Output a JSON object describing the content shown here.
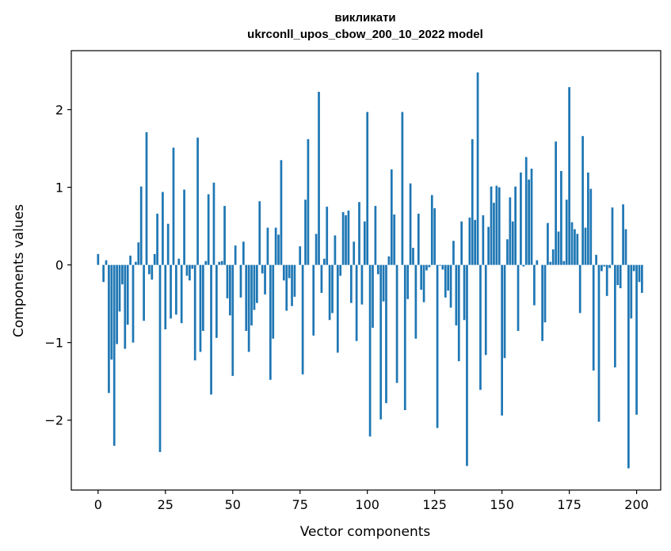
{
  "chart_data": {
    "type": "bar",
    "title_line1": "викликати",
    "title_line2": "ukrconll_upos_cbow_200_10_2022 model",
    "xlabel": "Vector components",
    "ylabel": "Components values",
    "xlim": [
      -9.95,
      208.95
    ],
    "ylim": [
      -2.9,
      2.76
    ],
    "xticks": [
      0,
      25,
      50,
      75,
      100,
      125,
      150,
      175,
      200
    ],
    "yticks": [
      -2,
      -1,
      0,
      1,
      2
    ],
    "ytick_labels": [
      "−2",
      "−1",
      "0",
      "1",
      "2"
    ],
    "bar_color": "#1f77b4",
    "grid": false,
    "values": [
      0.14,
      0.0,
      -0.22,
      0.06,
      -1.65,
      -1.22,
      -2.33,
      -1.02,
      -0.6,
      -0.25,
      -1.08,
      -0.77,
      0.12,
      -1.0,
      0.04,
      0.29,
      1.01,
      -0.72,
      1.71,
      -0.12,
      -0.19,
      0.14,
      0.66,
      -2.41,
      0.94,
      -0.83,
      0.53,
      -0.69,
      1.51,
      -0.64,
      0.08,
      -0.75,
      0.97,
      -0.14,
      -0.2,
      -0.05,
      -1.23,
      1.64,
      -1.12,
      -0.85,
      0.05,
      0.91,
      -1.67,
      1.06,
      -0.94,
      0.04,
      0.05,
      0.76,
      -0.43,
      -0.65,
      -1.43,
      0.25,
      0.0,
      -0.42,
      0.3,
      -0.85,
      -1.12,
      -0.78,
      -0.58,
      -0.49,
      0.82,
      -0.11,
      -0.38,
      0.48,
      -1.48,
      -0.95,
      0.48,
      0.39,
      1.35,
      -0.2,
      -0.59,
      -0.17,
      -0.53,
      -0.41,
      0.0,
      0.24,
      -1.41,
      0.84,
      1.62,
      0.0,
      -0.91,
      0.4,
      2.23,
      -0.36,
      0.08,
      0.75,
      -0.71,
      -0.62,
      0.38,
      -1.13,
      -0.14,
      0.68,
      0.64,
      0.7,
      -0.49,
      0.3,
      -0.98,
      0.81,
      -0.51,
      0.56,
      1.97,
      -2.21,
      -0.81,
      0.76,
      -0.12,
      -1.99,
      -0.47,
      -1.78,
      0.11,
      1.23,
      0.65,
      -1.52,
      0.0,
      1.97,
      -1.87,
      -0.44,
      1.05,
      0.22,
      -0.95,
      0.66,
      -0.32,
      -0.48,
      -0.07,
      -0.03,
      0.9,
      0.73,
      -2.1,
      -0.01,
      -0.06,
      -0.42,
      -0.33,
      -0.55,
      0.31,
      -0.78,
      -1.24,
      0.56,
      -0.71,
      -2.59,
      0.61,
      1.62,
      0.58,
      2.48,
      -1.61,
      0.64,
      -1.16,
      0.49,
      1.01,
      0.8,
      1.02,
      1.0,
      -1.94,
      -1.2,
      0.33,
      0.87,
      0.56,
      1.01,
      -0.85,
      1.19,
      -0.02,
      1.39,
      1.1,
      1.24,
      -0.52,
      0.06,
      0.0,
      -0.98,
      -0.74,
      0.54,
      0.04,
      0.2,
      1.59,
      0.43,
      1.21,
      0.05,
      0.84,
      2.29,
      0.55,
      0.46,
      0.4,
      -0.62,
      1.66,
      0.48,
      1.19,
      0.98,
      -1.36,
      0.13,
      -2.02,
      -0.08,
      -0.02,
      -0.4,
      -0.04,
      0.74,
      -1.32,
      -0.26,
      -0.3,
      0.78,
      0.46,
      -2.62,
      -0.69,
      -0.08,
      -1.93,
      -0.22,
      -0.36
    ]
  }
}
